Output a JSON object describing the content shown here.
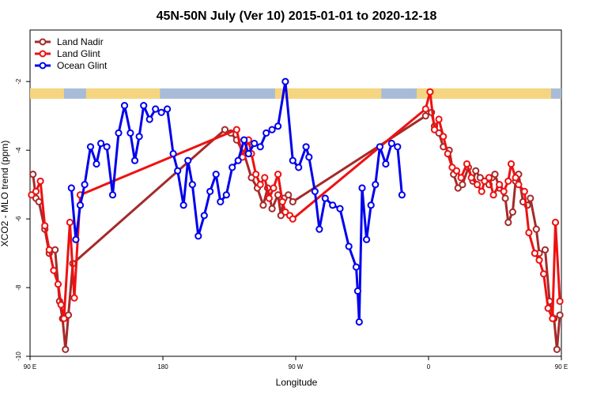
{
  "chart_data": {
    "type": "line",
    "title": "45N-50N July (Ver 10)   2015-01-01 to 2020-12-18",
    "xlabel": "Longitude",
    "ylabel": "XCO2 - MLO trend (ppm)",
    "xlim": [
      90,
      450
    ],
    "ylim": [
      -10,
      -0.5
    ],
    "x_ticks": [
      {
        "value": 90,
        "label": "90 E"
      },
      {
        "value": 180,
        "label": "180"
      },
      {
        "value": 270,
        "label": "90 W"
      },
      {
        "value": 360,
        "label": "0"
      },
      {
        "value": 450,
        "label": "90 E"
      },
      {
        "value": 540,
        "label": "180"
      }
    ],
    "y_ticks": [
      -10,
      -8,
      -6,
      -4,
      -2
    ],
    "legend_position": "top-left",
    "landmask_band": {
      "y_top": -2.2,
      "y_bottom": -2.5,
      "land_color": "#f6d580",
      "ocean_color": "#a8bcd8"
    },
    "series": [
      {
        "name": "Land Nadir",
        "color": "#a52a2a",
        "points": [
          [
            92,
            -4.7
          ],
          [
            94,
            -5.4
          ],
          [
            96,
            -5.5
          ],
          [
            100,
            -6.3
          ],
          [
            103,
            -7.0
          ],
          [
            107,
            -6.9
          ],
          [
            110,
            -8.4
          ],
          [
            112,
            -8.9
          ],
          [
            114,
            -9.8
          ],
          [
            116,
            -8.8
          ],
          [
            119,
            -7.3
          ],
          [
            222,
            -3.4
          ],
          [
            226,
            -3.5
          ],
          [
            230,
            -3.7
          ],
          [
            235,
            -4.1
          ],
          [
            240,
            -4.8
          ],
          [
            244,
            -5.1
          ],
          [
            248,
            -5.6
          ],
          [
            251,
            -5.1
          ],
          [
            254,
            -5.7
          ],
          [
            258,
            -5.3
          ],
          [
            260,
            -5.9
          ],
          [
            262,
            -5.4
          ],
          [
            265,
            -5.3
          ],
          [
            268,
            -5.5
          ],
          [
            358,
            -3.0
          ],
          [
            362,
            -2.9
          ],
          [
            364,
            -3.3
          ],
          [
            367,
            -3.5
          ],
          [
            370,
            -3.9
          ],
          [
            374,
            -4.0
          ],
          [
            377,
            -4.7
          ],
          [
            380,
            -5.1
          ],
          [
            383,
            -5.0
          ],
          [
            387,
            -4.5
          ],
          [
            390,
            -4.9
          ],
          [
            392,
            -4.6
          ],
          [
            395,
            -4.8
          ],
          [
            398,
            -4.9
          ],
          [
            401,
            -5.0
          ],
          [
            403,
            -4.8
          ],
          [
            405,
            -4.7
          ],
          [
            408,
            -5.1
          ],
          [
            412,
            -5.4
          ],
          [
            414,
            -6.1
          ],
          [
            417,
            -5.8
          ],
          [
            419,
            -4.9
          ],
          [
            421,
            -4.7
          ],
          [
            424,
            -5.5
          ],
          [
            427,
            -5.6
          ],
          [
            429,
            -5.4
          ],
          [
            433,
            -6.3
          ],
          [
            435,
            -7.0
          ],
          [
            439,
            -6.9
          ],
          [
            442,
            -8.4
          ],
          [
            445,
            -8.9
          ],
          [
            447,
            -9.8
          ],
          [
            449,
            -8.8
          ],
          [
            452,
            -7.3
          ]
        ]
      },
      {
        "name": "Land Glint",
        "color": "#ee1111",
        "points": [
          [
            91,
            -5.3
          ],
          [
            94,
            -5.2
          ],
          [
            97,
            -4.9
          ],
          [
            100,
            -6.2
          ],
          [
            103,
            -6.9
          ],
          [
            106,
            -7.5
          ],
          [
            109,
            -7.9
          ],
          [
            111,
            -8.5
          ],
          [
            113,
            -8.9
          ],
          [
            117,
            -6.1
          ],
          [
            120,
            -8.3
          ],
          [
            124,
            -5.3
          ],
          [
            230,
            -3.4
          ],
          [
            234,
            -4.2
          ],
          [
            238,
            -3.7
          ],
          [
            240,
            -4.1
          ],
          [
            243,
            -4.7
          ],
          [
            246,
            -5.0
          ],
          [
            249,
            -4.8
          ],
          [
            252,
            -5.4
          ],
          [
            255,
            -5.1
          ],
          [
            258,
            -4.7
          ],
          [
            261,
            -5.5
          ],
          [
            263,
            -5.8
          ],
          [
            266,
            -5.9
          ],
          [
            268,
            -6.0
          ],
          [
            358,
            -2.8
          ],
          [
            361,
            -2.3
          ],
          [
            364,
            -3.4
          ],
          [
            367,
            -3.1
          ],
          [
            370,
            -3.6
          ],
          [
            373,
            -4.1
          ],
          [
            376,
            -4.5
          ],
          [
            379,
            -4.6
          ],
          [
            382,
            -4.8
          ],
          [
            386,
            -4.4
          ],
          [
            389,
            -4.8
          ],
          [
            393,
            -5.0
          ],
          [
            396,
            -5.2
          ],
          [
            398,
            -4.9
          ],
          [
            401,
            -4.8
          ],
          [
            404,
            -5.3
          ],
          [
            408,
            -5.0
          ],
          [
            411,
            -5.2
          ],
          [
            414,
            -4.9
          ],
          [
            416,
            -4.4
          ],
          [
            419,
            -4.8
          ],
          [
            421,
            -5.0
          ],
          [
            425,
            -5.2
          ],
          [
            428,
            -6.4
          ],
          [
            432,
            -7.0
          ],
          [
            435,
            -7.2
          ],
          [
            438,
            -7.6
          ],
          [
            441,
            -8.6
          ],
          [
            444,
            -8.9
          ],
          [
            446,
            -6.1
          ],
          [
            449,
            -8.4
          ],
          [
            452,
            -5.3
          ]
        ]
      },
      {
        "name": "Ocean Glint",
        "color": "#0000ee",
        "points": [
          [
            118,
            -5.1
          ],
          [
            121,
            -6.6
          ],
          [
            124,
            -5.6
          ],
          [
            127,
            -5.0
          ],
          [
            131,
            -3.9
          ],
          [
            135,
            -4.4
          ],
          [
            138,
            -3.8
          ],
          [
            142,
            -3.9
          ],
          [
            146,
            -5.3
          ],
          [
            150,
            -3.5
          ],
          [
            154,
            -2.7
          ],
          [
            158,
            -3.5
          ],
          [
            161,
            -4.3
          ],
          [
            164,
            -3.6
          ],
          [
            167,
            -2.7
          ],
          [
            171,
            -3.1
          ],
          [
            175,
            -2.8
          ],
          [
            179,
            -2.9
          ],
          [
            183,
            -2.8
          ],
          [
            187,
            -4.1
          ],
          [
            190,
            -4.6
          ],
          [
            194,
            -5.6
          ],
          [
            197,
            -4.3
          ],
          [
            200,
            -5.0
          ],
          [
            204,
            -6.5
          ],
          [
            208,
            -5.9
          ],
          [
            212,
            -5.2
          ],
          [
            216,
            -4.7
          ],
          [
            219,
            -5.5
          ],
          [
            223,
            -5.3
          ],
          [
            227,
            -4.5
          ],
          [
            231,
            -4.3
          ],
          [
            235,
            -3.7
          ],
          [
            238,
            -4.1
          ],
          [
            242,
            -3.8
          ],
          [
            246,
            -3.9
          ],
          [
            250,
            -3.5
          ],
          [
            254,
            -3.4
          ],
          [
            258,
            -3.3
          ],
          [
            263,
            -2.0
          ],
          [
            268,
            -4.3
          ],
          [
            272,
            -4.5
          ],
          [
            277,
            -3.9
          ],
          [
            279,
            -4.2
          ],
          [
            283,
            -5.2
          ],
          [
            286,
            -6.3
          ],
          [
            290,
            -5.4
          ],
          [
            295,
            -5.6
          ],
          [
            300,
            -5.7
          ],
          [
            306,
            -6.8
          ],
          [
            311,
            -7.4
          ],
          [
            312,
            -8.1
          ],
          [
            313,
            -9.0
          ],
          [
            315,
            -5.1
          ],
          [
            318,
            -6.6
          ],
          [
            321,
            -5.6
          ],
          [
            324,
            -5.0
          ],
          [
            327,
            -3.9
          ],
          [
            331,
            -4.4
          ],
          [
            335,
            -3.8
          ],
          [
            339,
            -3.9
          ],
          [
            342,
            -5.3
          ]
        ]
      }
    ]
  }
}
